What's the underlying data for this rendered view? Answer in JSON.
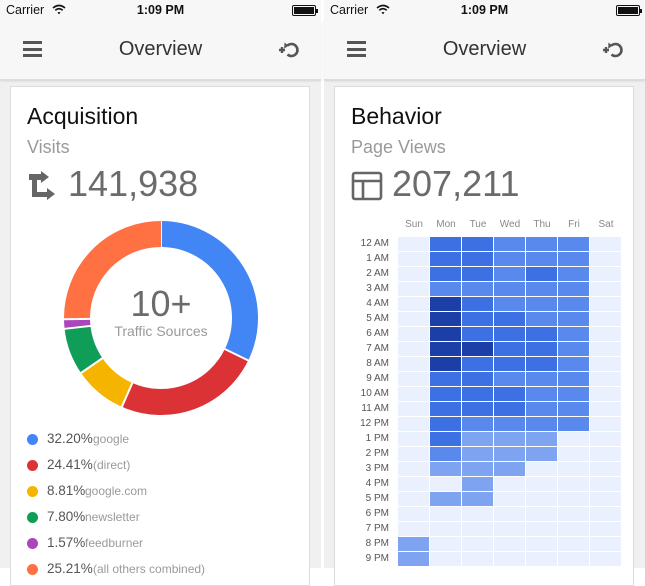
{
  "status_bar": {
    "carrier": "Carrier",
    "time": "1:09 PM"
  },
  "screens": [
    {
      "nav_title": "Overview"
    },
    {
      "nav_title": "Overview"
    }
  ],
  "acquisition": {
    "title": "Acquisition",
    "metric_label": "Visits",
    "metric_value": "141,938",
    "metric_icon": "arrows-icon",
    "donut_count": "10+",
    "donut_caption": "Traffic Sources",
    "sources": [
      {
        "pct": "32.20%",
        "name": "google",
        "value": 32.2,
        "color": "#4285f4"
      },
      {
        "pct": "24.41%",
        "name": "(direct)",
        "value": 24.41,
        "color": "#db3236"
      },
      {
        "pct": "8.81%",
        "name": "google.com",
        "value": 8.81,
        "color": "#f4b400"
      },
      {
        "pct": "7.80%",
        "name": "newsletter",
        "value": 7.8,
        "color": "#0f9d58"
      },
      {
        "pct": "1.57%",
        "name": "feedburner",
        "value": 1.57,
        "color": "#ab47bc"
      },
      {
        "pct": "25.21%",
        "name": "(all others combined)",
        "value": 25.21,
        "color": "#ff7043"
      }
    ]
  },
  "behavior": {
    "title": "Behavior",
    "metric_label": "Page Views",
    "metric_value": "207,211",
    "metric_icon": "layout-icon",
    "days": [
      "Sun",
      "Mon",
      "Tue",
      "Wed",
      "Thu",
      "Fri",
      "Sat"
    ],
    "hours": [
      "12 AM",
      "1 AM",
      "2 AM",
      "3 AM",
      "4 AM",
      "5 AM",
      "6 AM",
      "7 AM",
      "8 AM",
      "9 AM",
      "10 AM",
      "11 AM",
      "12 PM",
      "1 PM",
      "2 PM",
      "3 PM",
      "4 PM",
      "5 PM",
      "6 PM",
      "7 PM",
      "8 PM",
      "9 PM"
    ],
    "palette": [
      "#eaf0fd",
      "#a6c0f6",
      "#7ea3f1",
      "#5a89ee",
      "#3d70e3",
      "#2457d2",
      "#1b3fa7"
    ],
    "intensity": [
      [
        0,
        4,
        4,
        3,
        3,
        3,
        0
      ],
      [
        0,
        4,
        4,
        3,
        3,
        3,
        0
      ],
      [
        0,
        4,
        4,
        3,
        4,
        3,
        0
      ],
      [
        0,
        3,
        3,
        3,
        3,
        3,
        0
      ],
      [
        0,
        6,
        4,
        3,
        3,
        3,
        0
      ],
      [
        0,
        6,
        4,
        4,
        3,
        3,
        0
      ],
      [
        0,
        6,
        4,
        4,
        4,
        3,
        0
      ],
      [
        0,
        6,
        6,
        4,
        4,
        3,
        0
      ],
      [
        0,
        6,
        4,
        4,
        4,
        3,
        0
      ],
      [
        0,
        4,
        4,
        3,
        3,
        3,
        0
      ],
      [
        0,
        4,
        4,
        4,
        3,
        3,
        0
      ],
      [
        0,
        4,
        4,
        4,
        3,
        3,
        0
      ],
      [
        0,
        4,
        3,
        3,
        3,
        3,
        0
      ],
      [
        0,
        4,
        2,
        2,
        2,
        0,
        0
      ],
      [
        0,
        3,
        2,
        2,
        2,
        0,
        0
      ],
      [
        0,
        2,
        2,
        2,
        0,
        0,
        0
      ],
      [
        0,
        0,
        2,
        0,
        0,
        0,
        0
      ],
      [
        0,
        2,
        2,
        0,
        0,
        0,
        0
      ],
      [
        0,
        0,
        0,
        0,
        0,
        0,
        0
      ],
      [
        0,
        0,
        0,
        0,
        0,
        0,
        0
      ],
      [
        2,
        0,
        0,
        0,
        0,
        0,
        0
      ],
      [
        2,
        0,
        0,
        0,
        0,
        0,
        0
      ]
    ]
  }
}
